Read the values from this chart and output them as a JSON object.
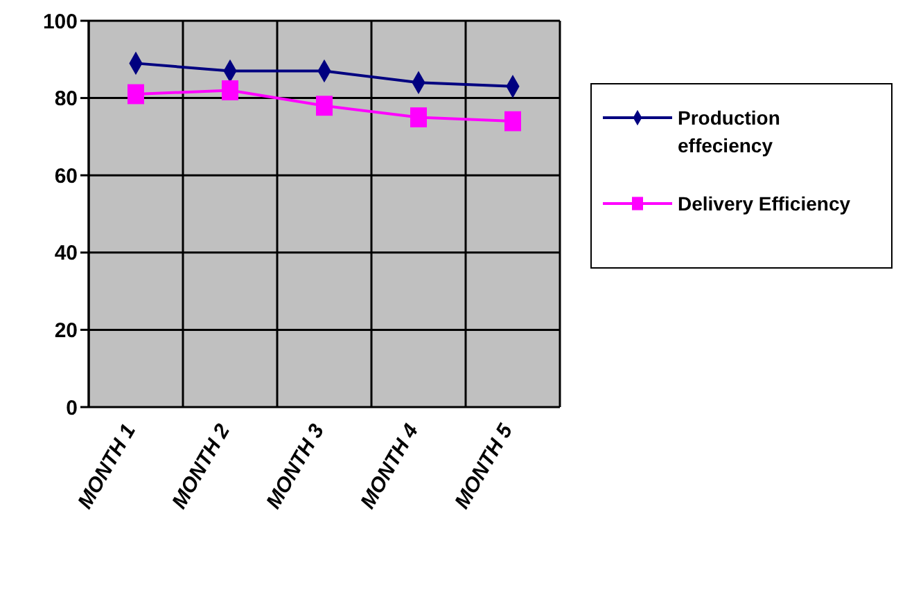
{
  "chart_data": {
    "type": "line",
    "categories": [
      "MONTH 1",
      "MONTH 2",
      "MONTH 3",
      "MONTH 4",
      "MONTH 5"
    ],
    "series": [
      {
        "name": "Production effeciency",
        "color": "#000080",
        "marker": "diamond",
        "values": [
          89,
          87,
          87,
          84,
          83
        ]
      },
      {
        "name": "Delivery Efficiency",
        "color": "#ff00ff",
        "marker": "square",
        "values": [
          81,
          82,
          78,
          75,
          74
        ]
      }
    ],
    "ylim": [
      0,
      100
    ],
    "yticks": [
      0,
      20,
      40,
      60,
      80,
      100
    ],
    "grid": true,
    "legend": "right"
  }
}
